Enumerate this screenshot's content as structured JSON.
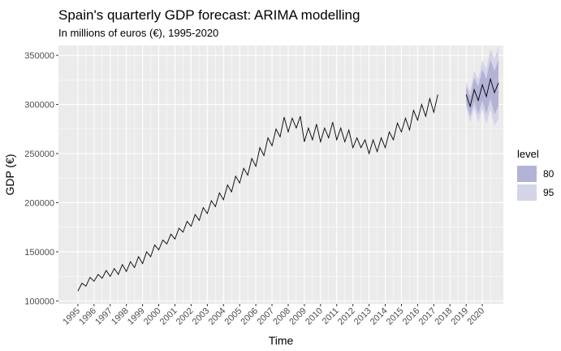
{
  "chart_data": {
    "type": "line",
    "title": "Spain's quarterly GDP forecast: ARIMA modelling",
    "subtitle": "In millions of euros (€), 1995-2020",
    "xlabel": "Time",
    "ylabel": "GDP (€)",
    "ylim": [
      97000,
      360000
    ],
    "xlim": [
      1993.8,
      2021.3
    ],
    "yticks": [
      100000,
      150000,
      200000,
      250000,
      300000,
      350000
    ],
    "ytick_labels": [
      "100000",
      "150000",
      "200000",
      "250000",
      "300000",
      "350000"
    ],
    "xtick_labels": [
      "1995",
      "1996",
      "1997",
      "1998",
      "1999",
      "2000",
      "2001",
      "2002",
      "2003",
      "2004",
      "2005",
      "2006",
      "2007",
      "2008",
      "2009",
      "2010",
      "2011",
      "2012",
      "2013",
      "2014",
      "2015",
      "2016",
      "2017",
      "2018",
      "2019",
      "2020"
    ],
    "grid": true,
    "legend_position": "right",
    "legend_title": "level",
    "colors": {
      "panel": "#ebebeb",
      "grid": "#ffffff",
      "line": "#000000",
      "band80": "#b3b3d6",
      "band95": "#d5d5e8"
    },
    "series": [
      {
        "x_start": 1995.0,
        "quarter_step": 0.25,
        "values": [
          110000,
          118000,
          115000,
          124000,
          120000,
          127000,
          123000,
          131000,
          125000,
          133000,
          127000,
          137000,
          130000,
          140000,
          134000,
          145000,
          138000,
          150000,
          145000,
          157000,
          152000,
          162000,
          158000,
          168000,
          163000,
          174000,
          170000,
          181000,
          176000,
          188000,
          182000,
          195000,
          189000,
          202000,
          196000,
          210000,
          203000,
          218000,
          211000,
          227000,
          220000,
          235000,
          228000,
          245000,
          237000,
          256000,
          248000,
          266000,
          258000,
          275000,
          267000,
          287000,
          272000,
          286000,
          276000,
          288000,
          262000,
          276000,
          264000,
          280000,
          262000,
          276000,
          266000,
          282000,
          264000,
          276000,
          262000,
          274000,
          256000,
          266000,
          256000,
          264000,
          250000,
          264000,
          252000,
          266000,
          256000,
          272000,
          264000,
          281000,
          272000,
          286000,
          274000,
          294000,
          284000,
          300000,
          288000,
          306000,
          292000,
          310000
        ]
      }
    ],
    "forecast": {
      "x_start": 2019.0,
      "quarter_step": 0.25,
      "mean": [
        310000,
        298000,
        315000,
        304000,
        320000,
        308000,
        326000,
        312000,
        322000
      ],
      "lo80": [
        302000,
        288000,
        303000,
        290000,
        304000,
        290000,
        306000,
        290000,
        298000
      ],
      "hi80": [
        318000,
        308000,
        327000,
        318000,
        336000,
        326000,
        346000,
        334000,
        346000
      ],
      "lo95": [
        297000,
        282000,
        296000,
        282000,
        295000,
        280000,
        295000,
        278000,
        285000
      ],
      "hi95": [
        323000,
        314000,
        334000,
        326000,
        345000,
        336000,
        357000,
        346000,
        359000
      ]
    },
    "legend": [
      {
        "label": "80",
        "color": "#b3b3d6"
      },
      {
        "label": "95",
        "color": "#d5d5e8"
      }
    ]
  }
}
